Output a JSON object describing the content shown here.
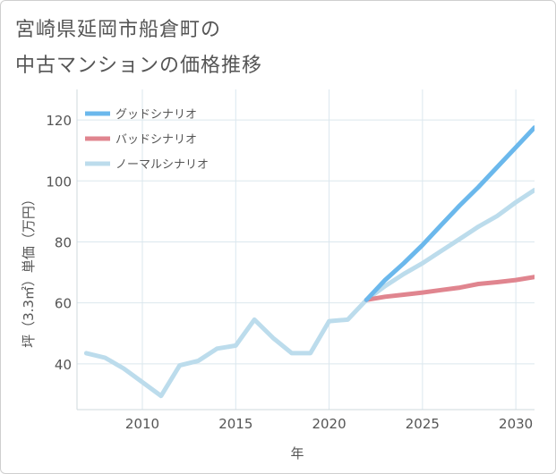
{
  "title_line1": "宮崎県延岡市船倉町の",
  "title_line2": "中古マンションの価格推移",
  "chart_data": {
    "type": "line",
    "xlabel": "年",
    "ylabel": "坪（3.3㎡）単価（万円）",
    "xlim": [
      2006.5,
      2031
    ],
    "ylim": [
      25,
      130
    ],
    "xticks": [
      2010,
      2015,
      2020,
      2025,
      2030
    ],
    "yticks": [
      40,
      60,
      80,
      100,
      120
    ],
    "grid": true,
    "legend_position": "top-left",
    "series": [
      {
        "name": "グッドシナリオ",
        "color": "#6bb8ec",
        "x": [
          2022,
          2023,
          2024,
          2025,
          2026,
          2027,
          2028,
          2029,
          2030,
          2031
        ],
        "values": [
          61,
          67.5,
          73,
          79,
          85.5,
          92,
          98,
          104.5,
          111,
          117.5
        ]
      },
      {
        "name": "バッドシナリオ",
        "color": "#e0858f",
        "x": [
          2022,
          2023,
          2024,
          2025,
          2026,
          2027,
          2028,
          2029,
          2030,
          2031
        ],
        "values": [
          61,
          62,
          62.7,
          63.4,
          64.2,
          65,
          66.2,
          66.8,
          67.5,
          68.5
        ]
      },
      {
        "name": "ノーマルシナリオ",
        "color": "#bcdcec",
        "x": [
          2007,
          2008,
          2009,
          2010,
          2011,
          2012,
          2013,
          2014,
          2015,
          2016,
          2017,
          2018,
          2019,
          2020,
          2021,
          2022,
          2023,
          2024,
          2025,
          2026,
          2027,
          2028,
          2029,
          2030,
          2031
        ],
        "values": [
          43.5,
          42,
          38.5,
          34,
          29.5,
          39.5,
          41,
          45,
          46,
          54.5,
          48.5,
          43.5,
          43.5,
          54,
          54.5,
          61,
          65.5,
          69.5,
          73,
          77,
          81,
          85,
          88.5,
          93,
          97
        ]
      }
    ]
  }
}
